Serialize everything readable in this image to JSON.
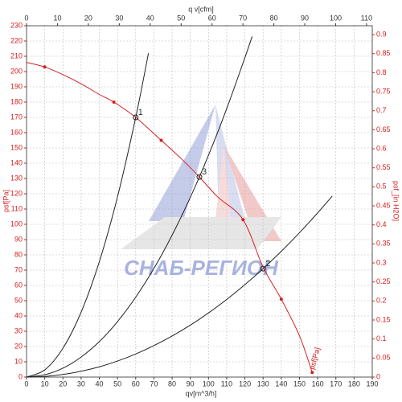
{
  "chart_data": {
    "type": "line",
    "x_label": "qv[m^3/h]",
    "x2_label": "q v[cfm]",
    "y_label": "psf[Pa]",
    "y2_label": "psf_[in H2O]",
    "watermark": "СНАБ-РЕГИОН",
    "xlim": [
      0,
      190
    ],
    "xticks": [
      0,
      10,
      20,
      30,
      40,
      50,
      60,
      70,
      80,
      90,
      100,
      110,
      120,
      130,
      140,
      150,
      160,
      170,
      180,
      190
    ],
    "x2lim": [
      0,
      111.83
    ],
    "x2ticks": [
      0,
      10,
      20,
      30,
      40,
      50,
      60,
      70,
      80,
      90,
      100,
      110
    ],
    "ylim": [
      0,
      230
    ],
    "yticks": [
      0,
      10,
      20,
      30,
      40,
      50,
      60,
      70,
      80,
      90,
      100,
      110,
      120,
      130,
      140,
      150,
      160,
      170,
      180,
      190,
      200,
      210,
      220,
      230
    ],
    "y2lim": [
      0,
      0.9234
    ],
    "y2ticks": [
      0,
      0.05,
      0.1,
      0.15,
      0.2,
      0.25,
      0.3,
      0.35,
      0.4,
      0.45,
      0.5,
      0.55,
      0.6,
      0.65,
      0.7,
      0.75,
      0.8,
      0.85,
      0.9
    ],
    "grid": true,
    "series": [
      {
        "color": "#d62020",
        "x": [
          0,
          10,
          20,
          30,
          40,
          48,
          60,
          74,
          85,
          95,
          105,
          119,
          130,
          140,
          150,
          157
        ],
        "values": [
          206,
          203,
          198,
          192,
          185,
          180,
          170,
          155,
          143,
          131,
          118,
          103,
          72,
          51,
          27,
          3
        ]
      },
      {
        "color": "#222222",
        "x": [
          0,
          10,
          20,
          30,
          40,
          50,
          60,
          67
        ],
        "values": [
          0,
          4.7,
          18.9,
          42.5,
          75.5,
          118,
          170,
          212
        ]
      },
      {
        "color": "#222222",
        "x": [
          0,
          10,
          20,
          30,
          40,
          50,
          60,
          70,
          80,
          90,
          100,
          110,
          120,
          124
        ],
        "values": [
          0,
          1.5,
          5.8,
          13.1,
          23.2,
          36.3,
          52.3,
          71.1,
          92.9,
          117.6,
          145.2,
          175.7,
          209.1,
          223
        ]
      },
      {
        "color": "#222222",
        "x": [
          0,
          10,
          20,
          30,
          40,
          50,
          60,
          70,
          80,
          90,
          100,
          110,
          120,
          130,
          140,
          150,
          160,
          168
        ],
        "values": [
          0,
          0.4,
          1.7,
          3.8,
          6.7,
          10.5,
          15.1,
          20.6,
          26.9,
          34,
          42,
          50.8,
          60.5,
          71,
          82.3,
          94.5,
          107.5,
          118.5
        ]
      }
    ],
    "markers": {
      "color": "#d62020",
      "x": [
        10,
        48,
        74,
        119,
        140,
        157
      ],
      "values": [
        203,
        180,
        155,
        103,
        51,
        3
      ]
    },
    "points": [
      {
        "label": "1",
        "x": 60,
        "y": 170
      },
      {
        "label": "2",
        "x": 130,
        "y": 71
      },
      {
        "label": "3",
        "x": 95,
        "y": 131
      }
    ]
  }
}
